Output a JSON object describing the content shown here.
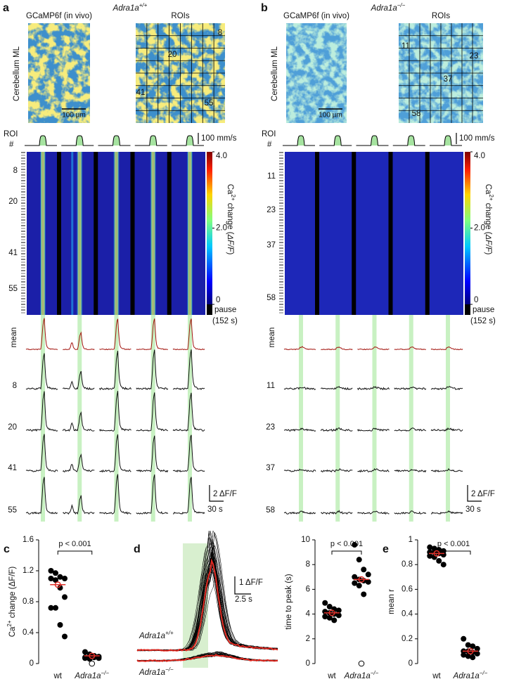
{
  "figure": {
    "a": {
      "letter": "a",
      "genotype": {
        "gene": "Adra1a",
        "sup": "+/+"
      },
      "image_titles": [
        "GCaMP6f (in vivo)",
        "ROIs"
      ],
      "region": "Cerebellum ML",
      "scale_image": "100 µm",
      "roi_image_labels": [
        "8",
        "20",
        "41",
        "55"
      ],
      "roi_header": [
        "ROI",
        "#"
      ],
      "speed_scale": "100 mm/s",
      "row_labels": [
        "8",
        "20",
        "41",
        "55"
      ],
      "colorbar": {
        "title": [
          "Ca",
          "2+",
          " change (",
          "ΔF/F",
          ")"
        ],
        "lim": [
          0,
          4
        ],
        "ticks": [
          0,
          {
            "value": 2,
            "label": "2.0"
          },
          {
            "value": 4,
            "label": "4.0"
          }
        ],
        "pause": [
          "pause",
          "(152 s)"
        ]
      },
      "trace_labels": [
        "mean",
        "8",
        "20",
        "41",
        "55"
      ],
      "trace_scale": [
        "2 ΔF/F",
        "30 s"
      ]
    },
    "b": {
      "letter": "b",
      "genotype": {
        "gene": "Adra1a",
        "sup": "−/−"
      },
      "image_titles": [
        "GCaMP6f (in vivo)",
        "ROIs"
      ],
      "region": "Cerebellum ML",
      "scale_image": "100 µm",
      "roi_image_labels": [
        "11",
        "23",
        "37",
        "58"
      ],
      "roi_header": [
        "ROI",
        "#"
      ],
      "speed_scale": "100 mm/s",
      "row_labels": [
        "11",
        "23",
        "37",
        "58"
      ],
      "colorbar": {
        "title": [
          "Ca",
          "2+",
          " change (",
          "ΔF/F",
          ")"
        ],
        "lim": [
          0,
          4
        ],
        "ticks": [
          0,
          {
            "value": 2,
            "label": "2.0"
          },
          {
            "value": 4,
            "label": "4.0"
          }
        ],
        "pause": [
          "pause",
          "(152 s)"
        ]
      },
      "trace_labels": [
        "mean",
        "11",
        "23",
        "37",
        "58"
      ],
      "trace_scale": [
        "2 ΔF/F",
        "30 s"
      ]
    },
    "d": {
      "letter": "d",
      "trace_scale": [
        "1 ΔF/F",
        "2.5 s"
      ],
      "group_labels": [
        {
          "gene": "Adra1a",
          "sup": "+/+"
        },
        {
          "gene": "Adra1a",
          "sup": "−/−"
        }
      ]
    }
  },
  "chart_data": [
    {
      "type": "scatter",
      "panel": "c",
      "ylabel": [
        "Ca",
        "2+",
        " change (ΔF/F)"
      ],
      "categories": [
        "wt",
        [
          "Adra1a",
          "−/−"
        ]
      ],
      "annotation": "p < 0.001",
      "ylim": [
        0,
        1.6
      ],
      "yticks": [
        0,
        0.4,
        0.8,
        1.2,
        1.6
      ],
      "point_color": "#000000",
      "mean_color": "#e0302a",
      "series": [
        {
          "values": [
            1.2,
            1.17,
            1.12,
            1.1,
            1.1,
            1.08,
            0.98,
            0.86,
            0.72,
            0.72,
            0.5,
            0.35
          ],
          "mean": 1.02
        },
        {
          "values": [
            0.15,
            0.12,
            0.1,
            0.09,
            0.08,
            0.08,
            0.08,
            0.07,
            0.07,
            0.06
          ],
          "mean": 0.1,
          "excluded": [
            0
          ]
        }
      ]
    },
    {
      "type": "scatter",
      "ylabel": [
        "time to peak (s)"
      ],
      "categories": [
        "wt",
        [
          "Adra1a",
          "−/−"
        ]
      ],
      "annotation": "p < 0.001",
      "ylim": [
        0,
        10
      ],
      "yticks": [
        0,
        2,
        4,
        6,
        8,
        10
      ],
      "point_color": "#000000",
      "mean_color": "#e0302a",
      "series": [
        {
          "values": [
            4.9,
            4.6,
            4.4,
            4.3,
            4.2,
            4.1,
            4.0,
            3.9,
            3.8,
            3.7,
            3.5
          ],
          "mean": 4.1
        },
        {
          "values": [
            9.6,
            8.4,
            7.6,
            7.2,
            7.0,
            6.8,
            6.7,
            6.6,
            6.5,
            6.3,
            5.6
          ],
          "mean": 6.8,
          "excluded": [
            0
          ]
        }
      ]
    },
    {
      "type": "scatter",
      "panel": "e",
      "ylabel": [
        "mean r"
      ],
      "categories": [
        "wt",
        [
          "Adra1a",
          "−/−"
        ]
      ],
      "annotation": "p < 0.001",
      "ylim": [
        0,
        1
      ],
      "yticks": [
        0,
        0.2,
        0.4,
        0.6,
        0.8,
        1
      ],
      "point_color": "#000000",
      "mean_color": "#e0302a",
      "series": [
        {
          "values": [
            0.94,
            0.93,
            0.92,
            0.91,
            0.9,
            0.9,
            0.89,
            0.88,
            0.87,
            0.86,
            0.83,
            0.8
          ],
          "mean": 0.89
        },
        {
          "values": [
            0.2,
            0.15,
            0.14,
            0.12,
            0.1,
            0.1,
            0.09,
            0.08,
            0.07,
            0.06,
            0.05
          ],
          "mean": 0.1
        }
      ]
    }
  ]
}
